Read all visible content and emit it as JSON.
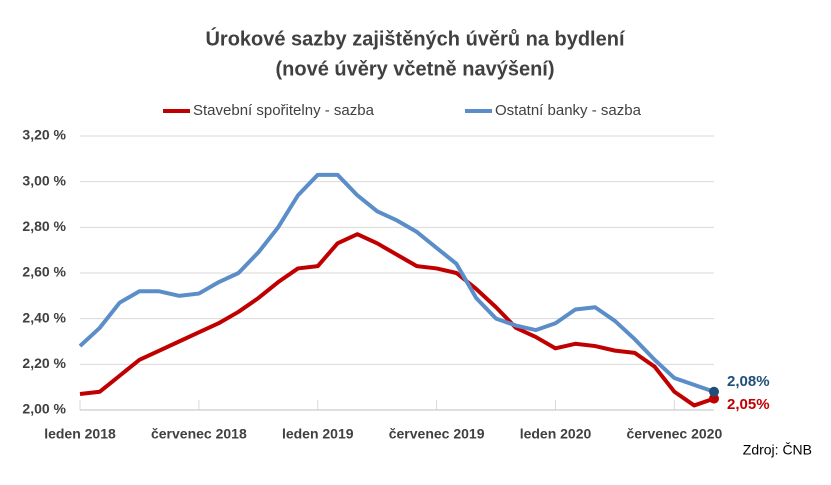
{
  "chart_data": {
    "type": "line",
    "title": "Úrokové sazby zajištěných úvěrů na bydlení",
    "subtitle": "(nové úvěry včetně navýšení)",
    "source": "Zdroj: ČNB",
    "categories": [
      "leden 2018",
      null,
      null,
      null,
      null,
      null,
      "červenec 2018",
      null,
      null,
      null,
      null,
      null,
      "leden 2019",
      null,
      null,
      null,
      null,
      null,
      "červenec 2019",
      null,
      null,
      null,
      null,
      null,
      "leden 2020",
      null,
      null,
      null,
      null,
      null,
      "červenec 2020",
      null,
      null
    ],
    "series": [
      {
        "name": "Stavební spořitelny - sazba",
        "color": "#c00000",
        "values": [
          2.07,
          2.08,
          2.15,
          2.22,
          2.26,
          2.3,
          2.34,
          2.38,
          2.43,
          2.49,
          2.56,
          2.62,
          2.63,
          2.73,
          2.77,
          2.73,
          2.68,
          2.63,
          2.62,
          2.6,
          2.53,
          2.45,
          2.36,
          2.32,
          2.27,
          2.29,
          2.28,
          2.26,
          2.25,
          2.19,
          2.08,
          2.02,
          2.05
        ],
        "value_labels": [
          null,
          null,
          null,
          null,
          null,
          null,
          null,
          null,
          null,
          null,
          null,
          null,
          null,
          null,
          null,
          null,
          null,
          null,
          null,
          null,
          null,
          null,
          null,
          null,
          null,
          null,
          null,
          null,
          null,
          null,
          null,
          null,
          "2,05%"
        ]
      },
      {
        "name": "Ostatní banky - sazba",
        "color": "#5b8ec8",
        "values": [
          2.28,
          2.36,
          2.47,
          2.52,
          2.52,
          2.5,
          2.51,
          2.56,
          2.6,
          2.69,
          2.8,
          2.94,
          3.03,
          3.03,
          2.94,
          2.87,
          2.83,
          2.78,
          2.71,
          2.64,
          2.49,
          2.4,
          2.37,
          2.35,
          2.38,
          2.44,
          2.45,
          2.39,
          2.31,
          2.22,
          2.14,
          2.11,
          2.08
        ],
        "value_labels": [
          null,
          null,
          null,
          null,
          null,
          null,
          null,
          null,
          null,
          null,
          null,
          null,
          null,
          null,
          null,
          null,
          null,
          null,
          null,
          null,
          null,
          null,
          null,
          null,
          null,
          null,
          null,
          null,
          null,
          null,
          null,
          null,
          "2,08%"
        ]
      }
    ],
    "ylim": [
      2.0,
      3.2
    ],
    "yticks": [
      {
        "value": 2.0,
        "label": "2,00 %"
      },
      {
        "value": 2.2,
        "label": "2,20 %"
      },
      {
        "value": 2.4,
        "label": "2,40 %"
      },
      {
        "value": 2.6,
        "label": "2,60 %"
      },
      {
        "value": 2.8,
        "label": "2,80 %"
      },
      {
        "value": 3.0,
        "label": "3,00 %"
      },
      {
        "value": 3.2,
        "label": "3,20 %"
      }
    ],
    "grid": true
  }
}
